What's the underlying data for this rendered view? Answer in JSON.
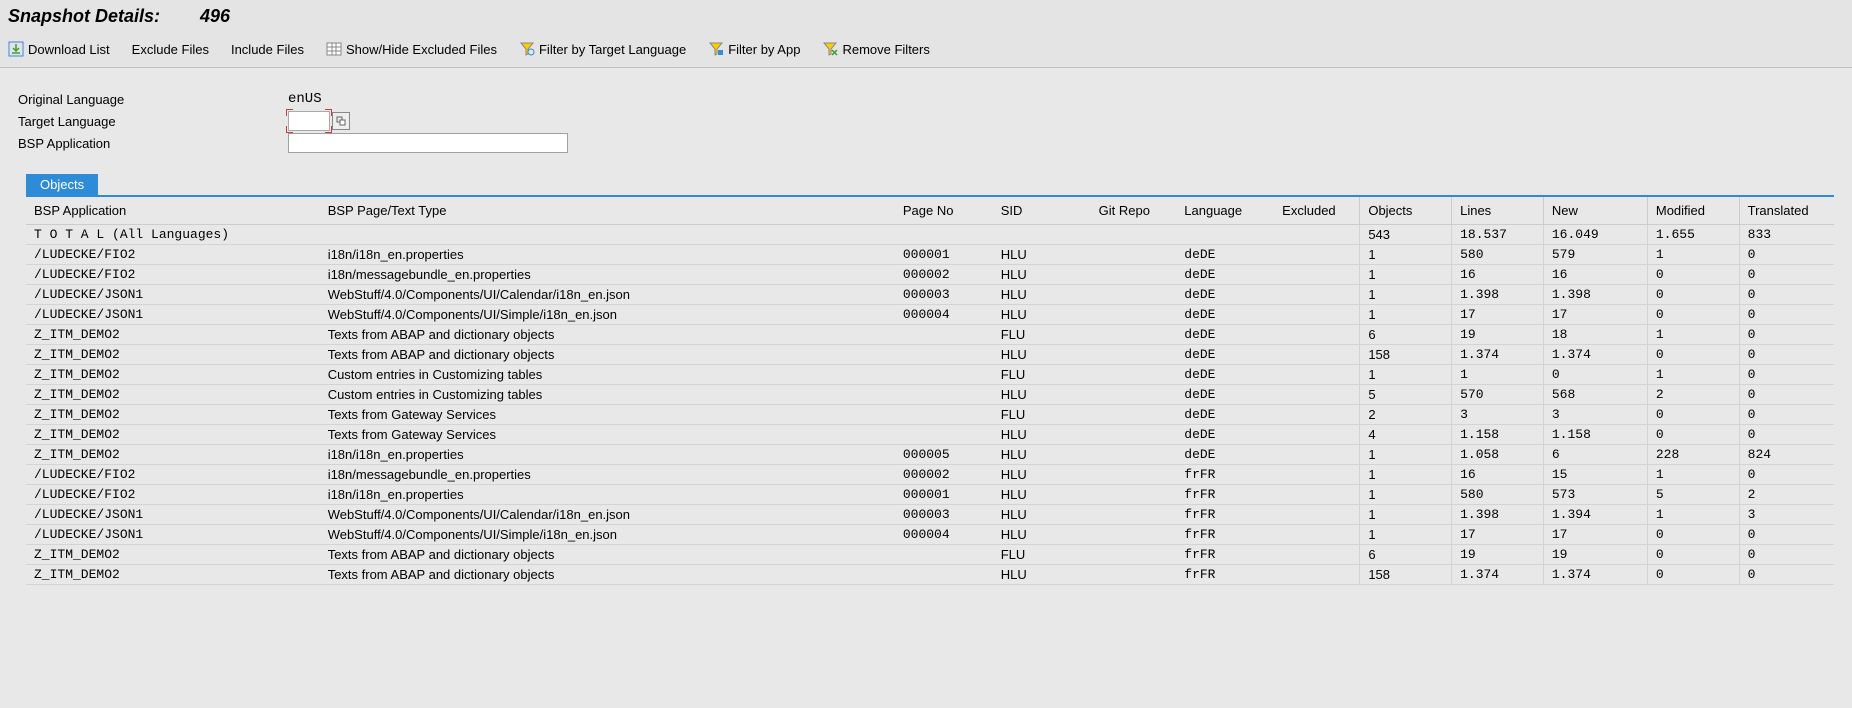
{
  "header": {
    "title": "Snapshot Details:",
    "number": "496"
  },
  "toolbar": {
    "download": "Download List",
    "exclude": "Exclude Files",
    "include": "Include Files",
    "showhide": "Show/Hide Excluded Files",
    "filterLang": "Filter by Target Language",
    "filterApp": "Filter by App",
    "removeFilters": "Remove Filters"
  },
  "form": {
    "origLangLabel": "Original Language",
    "origLangValue": "enUS",
    "targetLangLabel": "Target Language",
    "targetLangValue": "",
    "bspAppLabel": "BSP Application",
    "bspAppValue": ""
  },
  "tab": {
    "objects": "Objects"
  },
  "columns": {
    "bsp": "BSP Application",
    "page": "BSP Page/Text Type",
    "pageno": "Page No",
    "sid": "SID",
    "git": "Git Repo",
    "lang": "Language",
    "excl": "Excluded",
    "objects": "Objects",
    "lines": "Lines",
    "new": "New",
    "modified": "Modified",
    "translated": "Translated"
  },
  "rows": [
    {
      "bsp": "T O T A L  (All Languages)",
      "page": "",
      "pageno": "",
      "sid": "",
      "git": "",
      "lang": "",
      "excl": "",
      "objects": "543",
      "lines": "18.537",
      "new": "16.049",
      "modified": "1.655",
      "translated": "833",
      "mono": true
    },
    {
      "bsp": "/LUDECKE/FIO2",
      "page": "i18n/i18n_en.properties",
      "pageno": "000001",
      "sid": "HLU",
      "git": "",
      "lang": "deDE",
      "excl": "",
      "objects": "1",
      "lines": "580",
      "new": "579",
      "modified": "1",
      "translated": "0",
      "mono": true
    },
    {
      "bsp": "/LUDECKE/FIO2",
      "page": "i18n/messagebundle_en.properties",
      "pageno": "000002",
      "sid": "HLU",
      "git": "",
      "lang": "deDE",
      "excl": "",
      "objects": "1",
      "lines": "16",
      "new": "16",
      "modified": "0",
      "translated": "0",
      "mono": true
    },
    {
      "bsp": "/LUDECKE/JSON1",
      "page": "WebStuff/4.0/Components/UI/Calendar/i18n_en.json",
      "pageno": "000003",
      "sid": "HLU",
      "git": "",
      "lang": "deDE",
      "excl": "",
      "objects": "1",
      "lines": "1.398",
      "new": "1.398",
      "modified": "0",
      "translated": "0",
      "mono": true
    },
    {
      "bsp": "/LUDECKE/JSON1",
      "page": "WebStuff/4.0/Components/UI/Simple/i18n_en.json",
      "pageno": "000004",
      "sid": "HLU",
      "git": "",
      "lang": "deDE",
      "excl": "",
      "objects": "1",
      "lines": "17",
      "new": "17",
      "modified": "0",
      "translated": "0",
      "mono": true
    },
    {
      "bsp": "Z_ITM_DEMO2",
      "page": "Texts from ABAP and dictionary objects",
      "pageno": "",
      "sid": "FLU",
      "git": "",
      "lang": "deDE",
      "excl": "",
      "objects": "6",
      "lines": "19",
      "new": "18",
      "modified": "1",
      "translated": "0",
      "mono": true
    },
    {
      "bsp": "Z_ITM_DEMO2",
      "page": "Texts from ABAP and dictionary objects",
      "pageno": "",
      "sid": "HLU",
      "git": "",
      "lang": "deDE",
      "excl": "",
      "objects": "158",
      "lines": "1.374",
      "new": "1.374",
      "modified": "0",
      "translated": "0",
      "mono": true
    },
    {
      "bsp": "Z_ITM_DEMO2",
      "page": "Custom entries in Customizing tables",
      "pageno": "",
      "sid": "FLU",
      "git": "",
      "lang": "deDE",
      "excl": "",
      "objects": "1",
      "lines": "1",
      "new": "0",
      "modified": "1",
      "translated": "0",
      "mono": true
    },
    {
      "bsp": "Z_ITM_DEMO2",
      "page": "Custom entries in Customizing tables",
      "pageno": "",
      "sid": "HLU",
      "git": "",
      "lang": "deDE",
      "excl": "",
      "objects": "5",
      "lines": "570",
      "new": "568",
      "modified": "2",
      "translated": "0",
      "mono": true
    },
    {
      "bsp": "Z_ITM_DEMO2",
      "page": "Texts from Gateway Services",
      "pageno": "",
      "sid": "FLU",
      "git": "",
      "lang": "deDE",
      "excl": "",
      "objects": "2",
      "lines": "3",
      "new": "3",
      "modified": "0",
      "translated": "0",
      "mono": true
    },
    {
      "bsp": "Z_ITM_DEMO2",
      "page": "Texts from Gateway Services",
      "pageno": "",
      "sid": "HLU",
      "git": "",
      "lang": "deDE",
      "excl": "",
      "objects": "4",
      "lines": "1.158",
      "new": "1.158",
      "modified": "0",
      "translated": "0",
      "mono": true
    },
    {
      "bsp": "Z_ITM_DEMO2",
      "page": "i18n/i18n_en.properties",
      "pageno": "000005",
      "sid": "HLU",
      "git": "",
      "lang": "deDE",
      "excl": "",
      "objects": "1",
      "lines": "1.058",
      "new": "6",
      "modified": "228",
      "translated": "824",
      "mono": true
    },
    {
      "bsp": "/LUDECKE/FIO2",
      "page": "i18n/messagebundle_en.properties",
      "pageno": "000002",
      "sid": "HLU",
      "git": "",
      "lang": "frFR",
      "excl": "",
      "objects": "1",
      "lines": "16",
      "new": "15",
      "modified": "1",
      "translated": "0",
      "mono": true
    },
    {
      "bsp": "/LUDECKE/FIO2",
      "page": "i18n/i18n_en.properties",
      "pageno": "000001",
      "sid": "HLU",
      "git": "",
      "lang": "frFR",
      "excl": "",
      "objects": "1",
      "lines": "580",
      "new": "573",
      "modified": "5",
      "translated": "2",
      "mono": true
    },
    {
      "bsp": "/LUDECKE/JSON1",
      "page": "WebStuff/4.0/Components/UI/Calendar/i18n_en.json",
      "pageno": "000003",
      "sid": "HLU",
      "git": "",
      "lang": "frFR",
      "excl": "",
      "objects": "1",
      "lines": "1.398",
      "new": "1.394",
      "modified": "1",
      "translated": "3",
      "mono": true
    },
    {
      "bsp": "/LUDECKE/JSON1",
      "page": "WebStuff/4.0/Components/UI/Simple/i18n_en.json",
      "pageno": "000004",
      "sid": "HLU",
      "git": "",
      "lang": "frFR",
      "excl": "",
      "objects": "1",
      "lines": "17",
      "new": "17",
      "modified": "0",
      "translated": "0",
      "mono": true
    },
    {
      "bsp": "Z_ITM_DEMO2",
      "page": "Texts from ABAP and dictionary objects",
      "pageno": "",
      "sid": "FLU",
      "git": "",
      "lang": "frFR",
      "excl": "",
      "objects": "6",
      "lines": "19",
      "new": "19",
      "modified": "0",
      "translated": "0",
      "mono": true
    },
    {
      "bsp": "Z_ITM_DEMO2",
      "page": "Texts from ABAP and dictionary objects",
      "pageno": "",
      "sid": "HLU",
      "git": "",
      "lang": "frFR",
      "excl": "",
      "objects": "158",
      "lines": "1.374",
      "new": "1.374",
      "modified": "0",
      "translated": "0",
      "mono": true
    }
  ],
  "icons": {
    "download_color": "#3a9c3a",
    "filter_color": "#3a8ad6",
    "remove_color": "#3a9c3a"
  }
}
